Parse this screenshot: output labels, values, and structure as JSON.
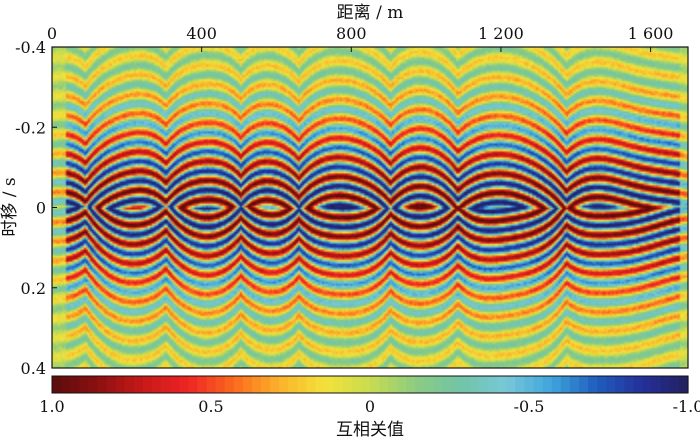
{
  "chart_data": {
    "type": "heatmap",
    "xlabel": "距离 / m",
    "ylabel": "时移 / s",
    "x_ticks": [
      {
        "value": 0,
        "label": "0"
      },
      {
        "value": 400,
        "label": "400"
      },
      {
        "value": 800,
        "label": "800"
      },
      {
        "value": 1200,
        "label": "1 200"
      },
      {
        "value": 1600,
        "label": "1 600"
      }
    ],
    "y_ticks": [
      {
        "value": -0.4,
        "label": "-0.4"
      },
      {
        "value": -0.2,
        "label": "-0.2"
      },
      {
        "value": 0,
        "label": "0"
      },
      {
        "value": 0.2,
        "label": "0.2"
      },
      {
        "value": 0.4,
        "label": "0.4"
      }
    ],
    "xlim": [
      0,
      1700
    ],
    "ylim": [
      -0.4,
      0.4
    ],
    "y_inverted": true,
    "x_axis_position": "top",
    "grid": false,
    "colorbar": {
      "label": "互相关值",
      "range": [
        1.0,
        -1.0
      ],
      "ticks": [
        {
          "value": 1.0,
          "label": "1.0"
        },
        {
          "value": 0.5,
          "label": "0.5"
        },
        {
          "value": 0,
          "label": "0"
        },
        {
          "value": -0.5,
          "label": "-0.5"
        },
        {
          "value": -1.0,
          "label": "-1.0"
        }
      ],
      "colors": [
        "#5a0c0c",
        "#8b1010",
        "#c81818",
        "#ee2424",
        "#fb6a1e",
        "#fbb22a",
        "#f3e23a",
        "#c8dc50",
        "#8ccc80",
        "#72c4a8",
        "#78c8d8",
        "#3fa4dc",
        "#1f5cbc",
        "#24309a",
        "#23205e"
      ],
      "position": "bottom"
    },
    "pattern": {
      "description_free": true,
      "band_period_s": 0.048,
      "gather_centers_m": [
        90,
        305,
        505,
        660,
        905,
        1085,
        1375
      ],
      "low_amplitude_x_m": [
        [
          0,
          40
        ],
        [
          1680,
          1700
        ]
      ]
    }
  }
}
